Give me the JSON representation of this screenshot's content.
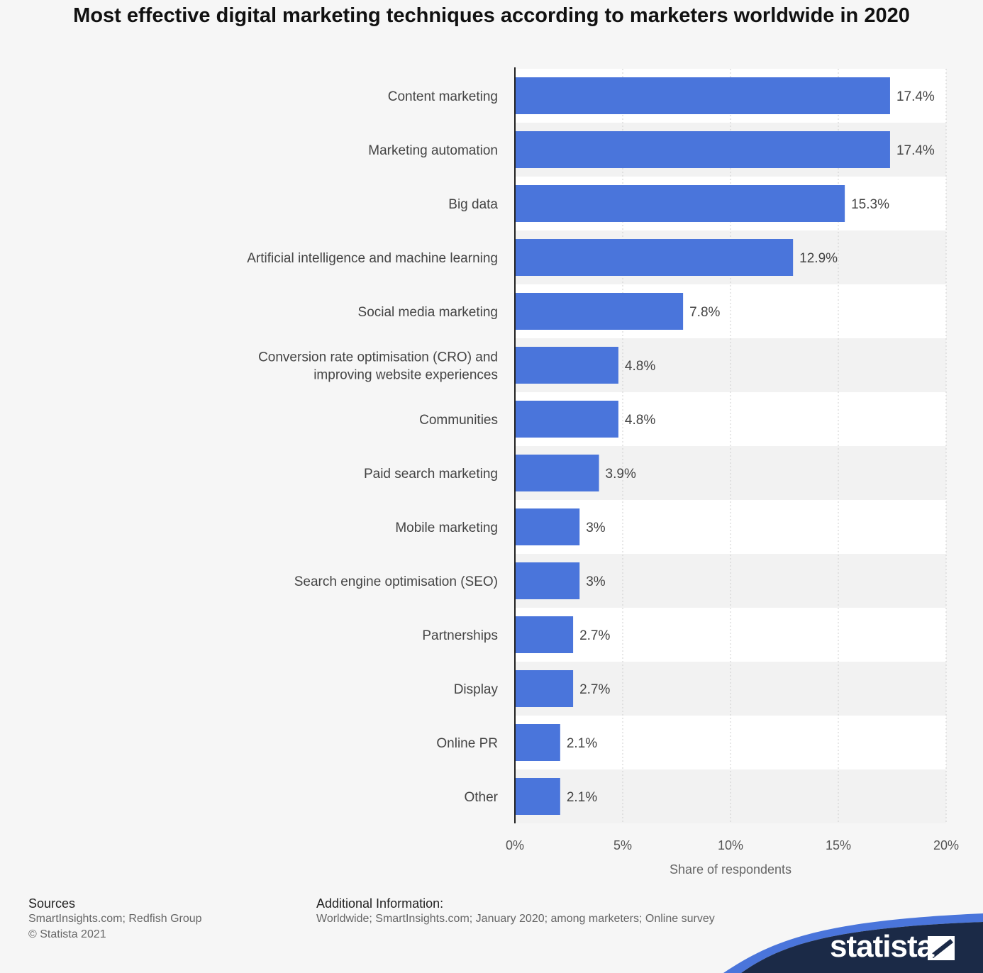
{
  "chart_data": {
    "type": "bar",
    "orientation": "horizontal",
    "title": "Most effective digital marketing techniques according to marketers worldwide in 2020",
    "xlabel": "Share of respondents",
    "ylabel": "",
    "xlim": [
      0,
      20
    ],
    "x_ticks": [
      "0%",
      "5%",
      "10%",
      "15%",
      "20%"
    ],
    "grid": true,
    "bar_color": "#4a75db",
    "categories": [
      [
        "Content marketing"
      ],
      [
        "Marketing automation"
      ],
      [
        "Big data"
      ],
      [
        "Artificial intelligence and machine learning"
      ],
      [
        "Social media marketing"
      ],
      [
        "Conversion rate optimisation (CRO) and",
        "improving website experiences"
      ],
      [
        "Communities"
      ],
      [
        "Paid search marketing"
      ],
      [
        "Mobile marketing"
      ],
      [
        "Search engine optimisation (SEO)"
      ],
      [
        "Partnerships"
      ],
      [
        "Display"
      ],
      [
        "Online PR"
      ],
      [
        "Other"
      ]
    ],
    "values": [
      17.4,
      17.4,
      15.3,
      12.9,
      7.8,
      4.8,
      4.8,
      3.9,
      3,
      3,
      2.7,
      2.7,
      2.1,
      2.1
    ],
    "value_labels": [
      "17.4%",
      "17.4%",
      "15.3%",
      "12.9%",
      "7.8%",
      "4.8%",
      "4.8%",
      "3.9%",
      "3%",
      "3%",
      "2.7%",
      "2.7%",
      "2.1%",
      "2.1%"
    ]
  },
  "footer": {
    "sources_heading": "Sources",
    "sources_line1": "SmartInsights.com; Redfish Group",
    "sources_line2": "© Statista 2021",
    "additional_heading": "Additional Information:",
    "additional_line": "Worldwide; SmartInsights.com; January 2020; among marketers; Online survey"
  },
  "brand": {
    "name": "statista",
    "logo_icon": "statista-logo-icon",
    "dark_color": "#1b2a47",
    "accent_color": "#4a75db"
  }
}
